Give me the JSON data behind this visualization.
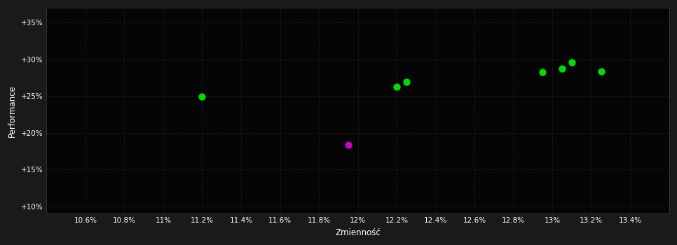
{
  "background_color": "#1a1a1a",
  "plot_bg_color": "#050505",
  "text_color": "#ffffff",
  "xlabel": "Zmienność",
  "ylabel": "Performance",
  "xlim": [
    0.104,
    0.136
  ],
  "ylim": [
    0.09,
    0.37
  ],
  "xticks": [
    0.106,
    0.108,
    0.11,
    0.112,
    0.114,
    0.116,
    0.118,
    0.12,
    0.122,
    0.124,
    0.126,
    0.128,
    0.13,
    0.132,
    0.134
  ],
  "yticks": [
    0.1,
    0.15,
    0.2,
    0.25,
    0.3,
    0.35
  ],
  "xtick_labels": [
    "10.6%",
    "10.8%",
    "11%",
    "11.2%",
    "11.4%",
    "11.6%",
    "11.8%",
    "12%",
    "12.2%",
    "12.4%",
    "12.6%",
    "12.8%",
    "13%",
    "13.2%",
    "13.4%"
  ],
  "ytick_labels": [
    "+10%",
    "+15%",
    "+20%",
    "+25%",
    "+30%",
    "+35%"
  ],
  "green_points": [
    [
      0.112,
      0.249
    ],
    [
      0.122,
      0.263
    ],
    [
      0.1225,
      0.269
    ],
    [
      0.1295,
      0.283
    ],
    [
      0.1305,
      0.287
    ],
    [
      0.131,
      0.296
    ],
    [
      0.1325,
      0.284
    ]
  ],
  "magenta_points": [
    [
      0.1195,
      0.184
    ]
  ],
  "green_color": "#00dd00",
  "magenta_color": "#cc00cc",
  "marker_size": 55
}
